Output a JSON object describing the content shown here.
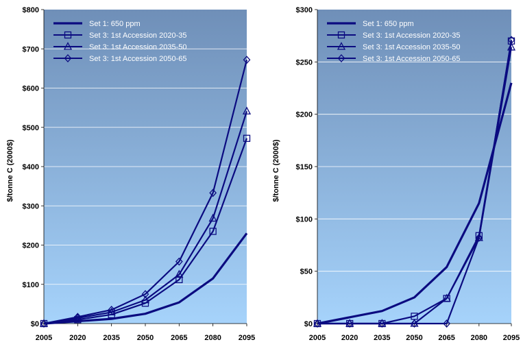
{
  "chart_data": [
    {
      "type": "line",
      "title": "",
      "xlabel": "",
      "ylabel": "$/tonne C (2000$)",
      "x": [
        2005,
        2020,
        2035,
        2050,
        2065,
        2080,
        2095
      ],
      "xtick_labels": [
        "2005",
        "2020",
        "2035",
        "2050",
        "2065",
        "2080",
        "2095"
      ],
      "ylim": [
        0,
        800
      ],
      "ytick_labels": [
        "$0",
        "$100",
        "$200",
        "$300",
        "$400",
        "$500",
        "$600",
        "$700",
        "$800"
      ],
      "grid": "horizontal",
      "legend_position": "top-left",
      "series": [
        {
          "name": "Set 1:  650 ppm",
          "marker": "none",
          "values": [
            0,
            6,
            12,
            25,
            54,
            115,
            230
          ]
        },
        {
          "name": "Set 3:  1st Accession 2020-35",
          "marker": "square",
          "values": [
            0,
            10,
            23,
            52,
            112,
            235,
            472
          ]
        },
        {
          "name": "Set 3:  1st Accession 2035-50",
          "marker": "triangle",
          "values": [
            0,
            14,
            29,
            60,
            125,
            268,
            541
          ]
        },
        {
          "name": "Set 3:  1st Accession 2050-65",
          "marker": "diamond",
          "values": [
            0,
            17,
            35,
            75,
            158,
            333,
            672
          ]
        }
      ]
    },
    {
      "type": "line",
      "title": "",
      "xlabel": "",
      "ylabel": "$/tonne C (2000$)",
      "x": [
        2005,
        2020,
        2035,
        2050,
        2065,
        2080,
        2095
      ],
      "xtick_labels": [
        "2005",
        "2020",
        "2035",
        "2050",
        "2065",
        "2080",
        "2095"
      ],
      "ylim": [
        0,
        300
      ],
      "ytick_labels": [
        "$0",
        "$50",
        "$100",
        "$150",
        "$200",
        "$250",
        "$300"
      ],
      "grid": "horizontal",
      "legend_position": "top-left",
      "series": [
        {
          "name": "Set 1:  650 ppm",
          "marker": "none",
          "values": [
            0,
            6,
            12,
            25,
            54,
            115,
            230
          ]
        },
        {
          "name": "Set 3:  1st Accession 2020-35",
          "marker": "square",
          "values": [
            0,
            0,
            0,
            7,
            24,
            84,
            270
          ]
        },
        {
          "name": "Set 3:  1st Accession 2035-50",
          "marker": "triangle",
          "values": [
            0,
            0,
            0,
            0,
            24,
            82,
            264
          ]
        },
        {
          "name": "Set 3:  1st Accession 2050-65",
          "marker": "diamond",
          "values": [
            0,
            0,
            0,
            0,
            0,
            82,
            271
          ]
        }
      ]
    }
  ],
  "colors": {
    "line": "#0b0b80",
    "plot_top": "#6f8fb8",
    "plot_bottom": "#a6d3fb",
    "grid": "#ffffff",
    "legend_text": "#ffffff"
  }
}
